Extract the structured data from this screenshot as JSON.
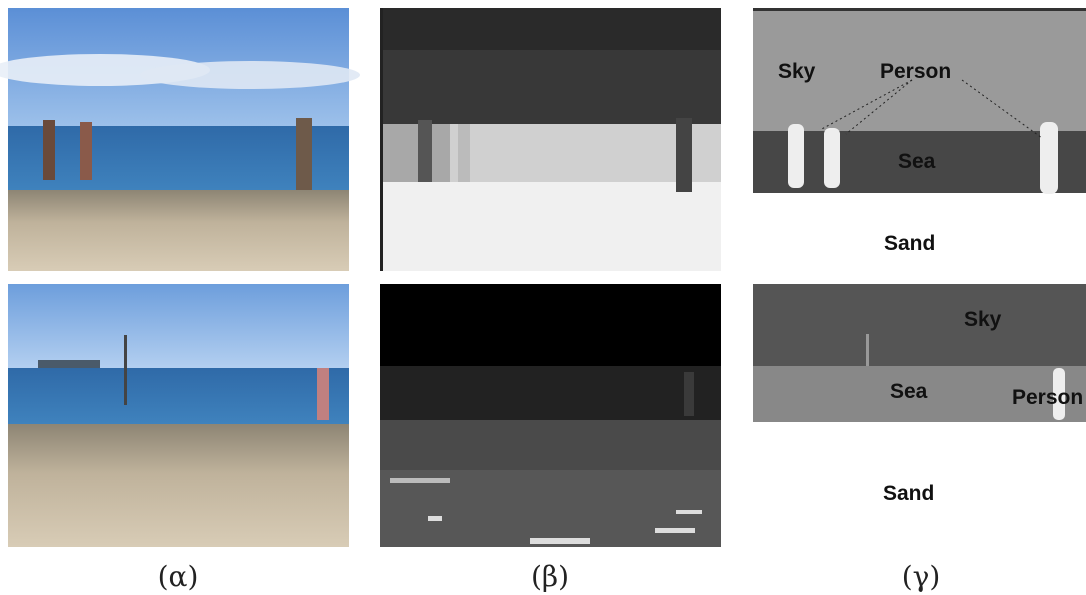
{
  "captions": [
    "(α)",
    "(β)",
    "(γ)"
  ],
  "segmentation_top": {
    "labels": [
      "Sky",
      "Person",
      "Sea",
      "Sand"
    ]
  },
  "segmentation_bottom": {
    "labels": [
      "Sky",
      "Sea",
      "Person",
      "Sand"
    ]
  }
}
